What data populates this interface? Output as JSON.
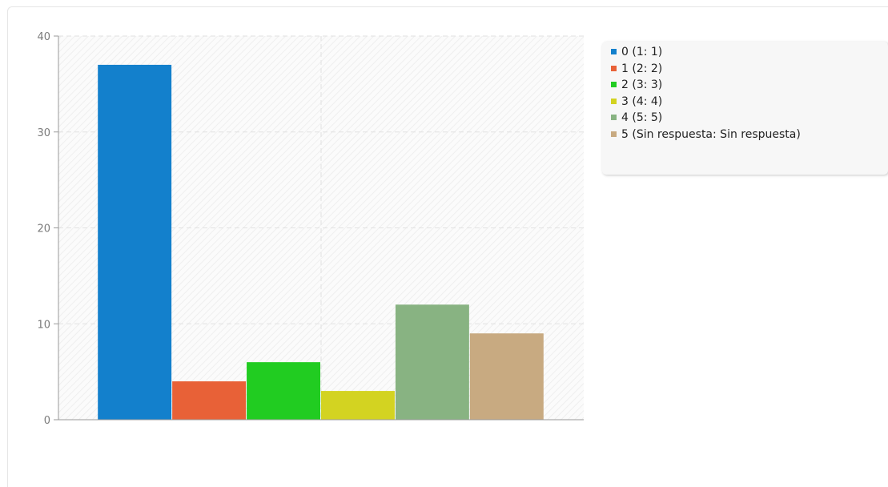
{
  "chart_data": {
    "type": "bar",
    "categories": [
      "0",
      "1",
      "2",
      "3",
      "4",
      "5"
    ],
    "values": [
      37,
      4,
      6,
      3,
      12,
      9
    ],
    "colors": [
      "#1380cc",
      "#e86137",
      "#21cc21",
      "#d3d321",
      "#88b382",
      "#c8aa81"
    ],
    "ylim": [
      0,
      40
    ],
    "yticks": [
      0,
      10,
      20,
      30,
      40
    ],
    "grid": true,
    "legend_position": "right",
    "legend": [
      "0 (1: 1)",
      "1 (2: 2)",
      "2 (3: 3)",
      "3 (4: 4)",
      "4 (5: 5)",
      "5 (Sin respuesta: Sin respuesta)"
    ],
    "title": "",
    "xlabel": "",
    "ylabel": ""
  }
}
